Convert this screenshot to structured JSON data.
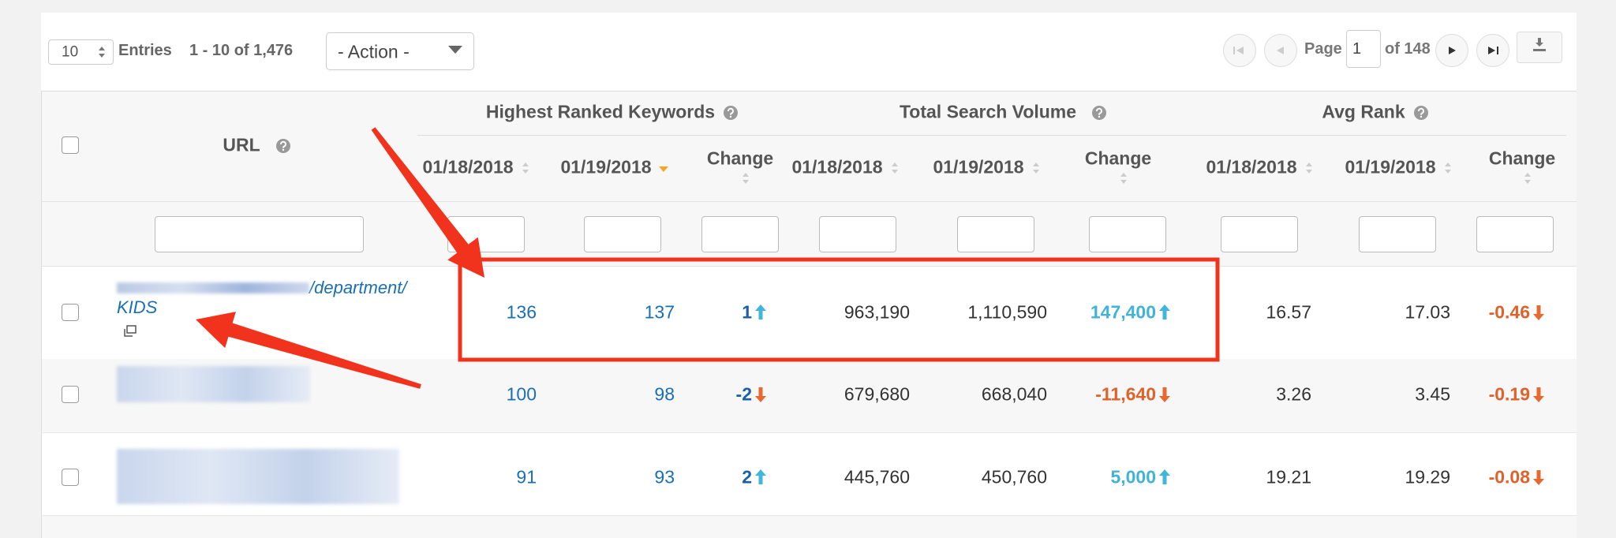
{
  "toolbar": {
    "page_size": "10",
    "entries_label": "Entries",
    "range": "1 - 10 of 1,476",
    "action": "- Action -",
    "page_label": "Page",
    "page": "1",
    "page_count": "of 148"
  },
  "table": {
    "url_header": "URL",
    "groups": [
      "Highest Ranked Keywords",
      "Total Search Volume",
      "Avg Rank"
    ],
    "columns": [
      "01/18/2018",
      "01/19/2018",
      "Change",
      "01/18/2018",
      "01/19/2018",
      "Change",
      "01/18/2018",
      "01/19/2018",
      "Change"
    ],
    "sort": {
      "column": 1,
      "direction": "desc"
    },
    "rows": [
      {
        "url": "/department/KIDS",
        "cells": [
          {
            "text": "136"
          },
          {
            "text": "137"
          },
          {
            "text": "1",
            "direction": "up"
          },
          {
            "text": "963,190"
          },
          {
            "text": "1,110,590"
          },
          {
            "text": "147,400",
            "direction": "up"
          },
          {
            "text": "16.57"
          },
          {
            "text": "17.03"
          },
          {
            "text": "-0.46",
            "direction": "down"
          }
        ]
      },
      {
        "cells": [
          {
            "text": "100"
          },
          {
            "text": "98"
          },
          {
            "text": "-2",
            "direction": "down"
          },
          {
            "text": "679,680"
          },
          {
            "text": "668,040"
          },
          {
            "text": "-11,640",
            "direction": "down"
          },
          {
            "text": "3.26"
          },
          {
            "text": "3.45"
          },
          {
            "text": "-0.19",
            "direction": "down"
          }
        ]
      },
      {
        "cells": [
          {
            "text": "91"
          },
          {
            "text": "93"
          },
          {
            "text": "2",
            "direction": "up"
          },
          {
            "text": "445,760"
          },
          {
            "text": "450,760"
          },
          {
            "text": "5,000",
            "direction": "up"
          },
          {
            "text": "19.21"
          },
          {
            "text": "19.29"
          },
          {
            "text": "-0.08",
            "direction": "down"
          }
        ]
      }
    ]
  }
}
